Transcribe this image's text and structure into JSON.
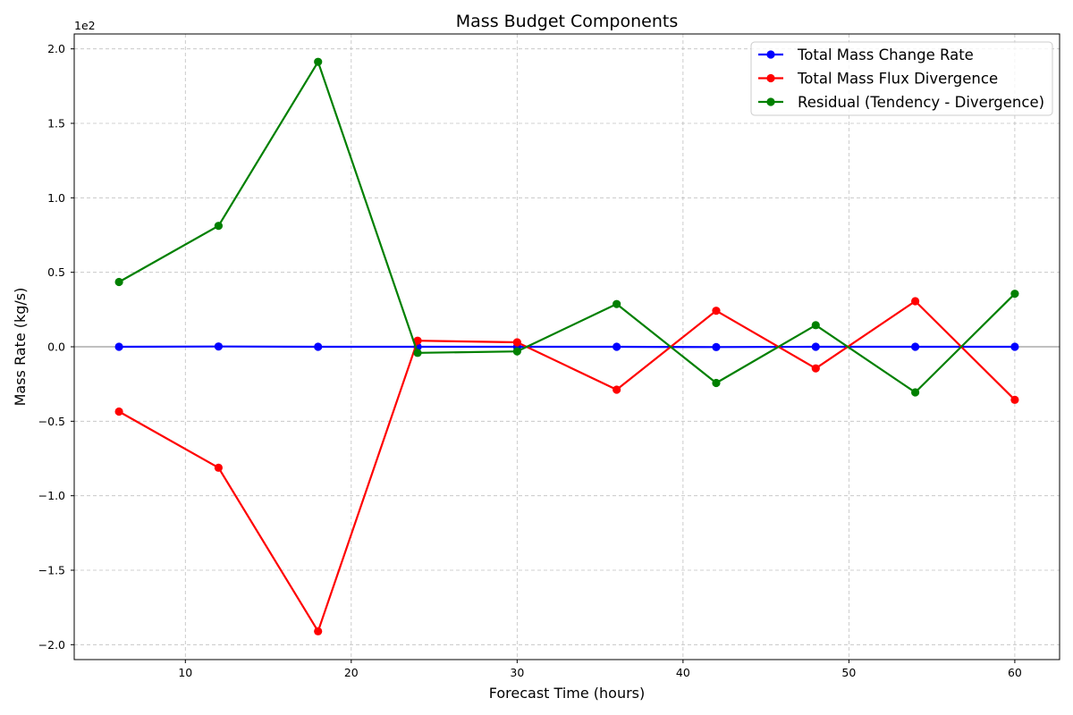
{
  "chart_data": {
    "type": "line",
    "title": "Mass Budget Components",
    "xlabel": "Forecast Time (hours)",
    "ylabel": "Mass Rate (kg/s)",
    "y_offset_label": "1e2",
    "x": [
      6,
      12,
      18,
      24,
      30,
      36,
      42,
      48,
      54,
      60
    ],
    "xlim": [
      3.3,
      62.7
    ],
    "ylim": [
      -210,
      210
    ],
    "xticks": [
      10,
      20,
      30,
      40,
      50,
      60
    ],
    "xtick_labels": [
      "10",
      "20",
      "30",
      "40",
      "50",
      "60"
    ],
    "yticks": [
      -200,
      -150,
      -100,
      -50,
      0,
      50,
      100,
      150,
      200
    ],
    "ytick_labels": [
      "−2.0",
      "−1.5",
      "−1.0",
      "−0.5",
      "0.0",
      "0.5",
      "1.0",
      "1.5",
      "2.0"
    ],
    "grid": true,
    "zero_line": true,
    "legend_position": "top-right",
    "series": [
      {
        "name": "Total Mass Change Rate",
        "color": "#0000ff",
        "values": [
          0.0,
          0.2,
          0.0,
          0.0,
          0.0,
          0.0,
          -0.2,
          0.0,
          0.0,
          0.0
        ]
      },
      {
        "name": "Total Mass Flux Divergence",
        "color": "#ff0000",
        "values": [
          -43.5,
          -81.2,
          -191.0,
          4.1,
          3.0,
          -28.8,
          24.2,
          -14.5,
          30.6,
          -35.6
        ]
      },
      {
        "name": "Residual (Tendency - Divergence)",
        "color": "#008000",
        "values": [
          43.5,
          81.2,
          191.3,
          -4.1,
          -3.1,
          28.7,
          -24.3,
          14.5,
          -30.6,
          35.6
        ]
      }
    ]
  }
}
